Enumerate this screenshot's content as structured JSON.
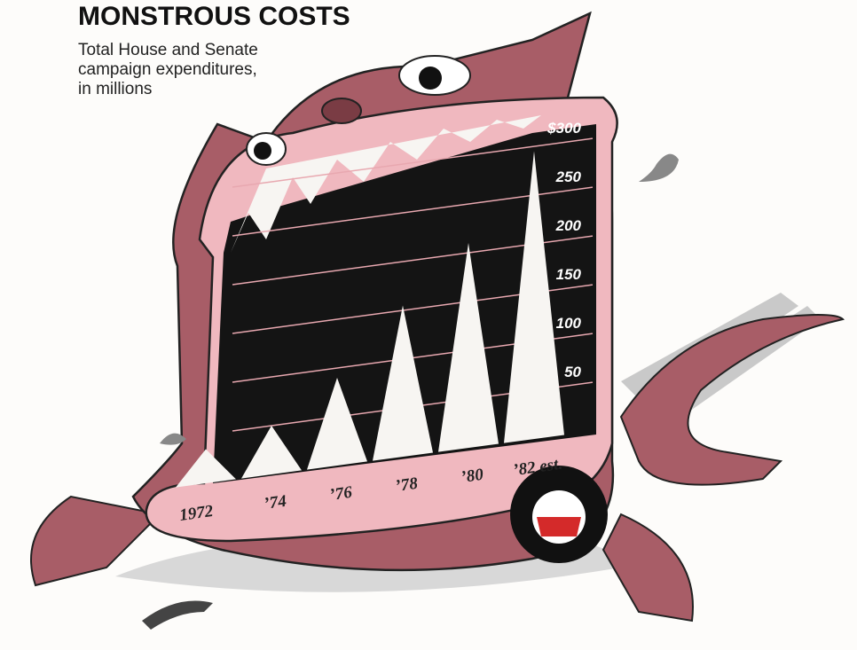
{
  "chart_data": {
    "type": "bar",
    "title": "MONSTROUS COSTS",
    "subtitle": [
      "Total House and Senate",
      "campaign expenditures,",
      "in millions"
    ],
    "categories": [
      "1972",
      "’74",
      "’76",
      "’78",
      "’80",
      "’82 est."
    ],
    "values": [
      35,
      50,
      90,
      155,
      210,
      295
    ],
    "color": "#f7f5f2",
    "ylim": [
      0,
      300
    ],
    "yticks": [
      50,
      100,
      150,
      200,
      250,
      {
        "value": 300,
        "label": "$300"
      }
    ],
    "grid": true
  }
}
